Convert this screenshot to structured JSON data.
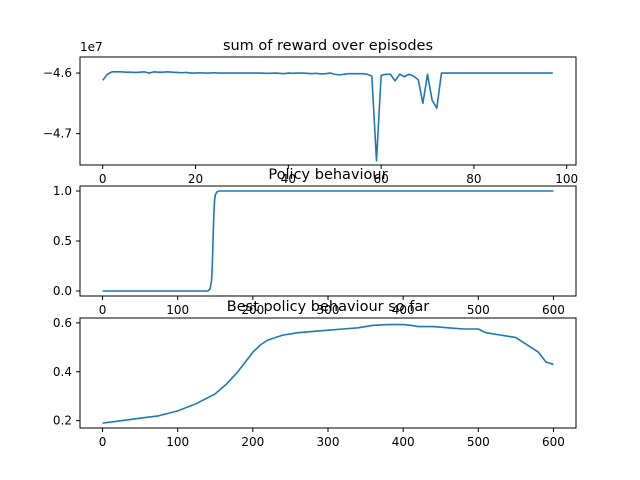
{
  "figure": {
    "background": "#ffffff"
  },
  "chart_data": [
    {
      "type": "line",
      "title": "sum of reward over episodes",
      "xlabel": "",
      "ylabel": "",
      "y_offset_text": "1e7",
      "xlim": [
        -4.9,
        102
      ],
      "ylim": [
        -4.7518,
        -4.5735
      ],
      "x_ticks": [
        0,
        20,
        40,
        60,
        80,
        100
      ],
      "x_tick_labels": [
        "0",
        "20",
        "40",
        "60",
        "80",
        "100"
      ],
      "y_ticks": [
        -4.6,
        -4.7
      ],
      "y_tick_labels": [
        "−4.6",
        "−4.7"
      ],
      "grid": false,
      "series": [
        {
          "color": "#1f77b4",
          "x": [
            0,
            1,
            2,
            3,
            4,
            5,
            6,
            7,
            8,
            9,
            10,
            11,
            12,
            13,
            14,
            15,
            16,
            17,
            18,
            19,
            20,
            21,
            22,
            23,
            24,
            25,
            26,
            27,
            28,
            29,
            30,
            31,
            32,
            33,
            34,
            35,
            36,
            37,
            38,
            39,
            40,
            41,
            42,
            43,
            44,
            45,
            46,
            47,
            48,
            49,
            50,
            51,
            52,
            53,
            54,
            55,
            56,
            57,
            58,
            59,
            60,
            61,
            62,
            63,
            64,
            65,
            66,
            67,
            68,
            69,
            70,
            71,
            72,
            73,
            74,
            75,
            76,
            77,
            78,
            79,
            80,
            81,
            82,
            83,
            84,
            85,
            86,
            87,
            88,
            89,
            90,
            91,
            92,
            93,
            94,
            95,
            96,
            97
          ],
          "y": [
            -46.12,
            -46.02,
            -45.98,
            -45.98,
            -45.98,
            -45.985,
            -45.985,
            -45.99,
            -45.985,
            -45.98,
            -46.0,
            -45.98,
            -45.985,
            -45.985,
            -45.98,
            -45.985,
            -45.99,
            -45.995,
            -45.99,
            -46.0,
            -46.0,
            -45.995,
            -46.0,
            -46.0,
            -45.995,
            -46.0,
            -46.0,
            -46.0,
            -46.0,
            -46.0,
            -46.0,
            -46.0,
            -46.0,
            -46.0,
            -46.0,
            -46.005,
            -46.005,
            -46.0,
            -46.005,
            -46.01,
            -46.0,
            -46.005,
            -46.0,
            -46.0,
            -46.005,
            -46.01,
            -46.005,
            -46.015,
            -46.01,
            -46.0,
            -46.02,
            -46.03,
            -46.02,
            -46.01,
            -46.01,
            -46.01,
            -46.01,
            -46.02,
            -46.05,
            -47.45,
            -46.04,
            -46.02,
            -46.02,
            -46.13,
            -46.02,
            -46.06,
            -46.02,
            -46.05,
            -46.11,
            -46.5,
            -46.02,
            -46.45,
            -46.58,
            -46.0,
            -46.0,
            -46.0,
            -46.0,
            -46.0,
            -46.0,
            -46.0,
            -46.0,
            -46.0,
            -46.0,
            -46.0,
            -46.0,
            -46.0,
            -46.0,
            -46.0,
            -46.0,
            -46.0,
            -46.0,
            -46.0,
            -46.0,
            -46.0,
            -46.0,
            -46.0,
            -46.0,
            -46.0
          ],
          "y_scale_note": "values shown in units of 1e6 for readability; axis shows 1e7 offset"
        }
      ]
    },
    {
      "type": "line",
      "title": "Policy behaviour",
      "xlabel": "",
      "ylabel": "",
      "xlim": [
        -30,
        630
      ],
      "ylim": [
        -0.05,
        1.05
      ],
      "x_ticks": [
        0,
        100,
        200,
        300,
        400,
        500,
        600
      ],
      "x_tick_labels": [
        "0",
        "100",
        "200",
        "300",
        "400",
        "500",
        "600"
      ],
      "y_ticks": [
        0.0,
        0.5,
        1.0
      ],
      "y_tick_labels": [
        "0.0",
        "0.5",
        "1.0"
      ],
      "grid": false,
      "series": [
        {
          "color": "#1f77b4",
          "x": [
            0,
            100,
            140,
            143,
            145,
            146,
            147,
            148,
            149,
            150,
            152,
            155,
            160,
            200,
            300,
            400,
            500,
            600
          ],
          "y": [
            0.0,
            0.0,
            0.0,
            0.02,
            0.1,
            0.25,
            0.5,
            0.75,
            0.9,
            0.96,
            0.99,
            1.0,
            1.0,
            1.0,
            1.0,
            1.0,
            1.0,
            1.0
          ]
        }
      ]
    },
    {
      "type": "line",
      "title": "Best policy behaviour so far",
      "xlabel": "",
      "ylabel": "",
      "xlim": [
        -30,
        630
      ],
      "ylim": [
        0.17,
        0.62
      ],
      "x_ticks": [
        0,
        100,
        200,
        300,
        400,
        500,
        600
      ],
      "x_tick_labels": [
        "0",
        "100",
        "200",
        "300",
        "400",
        "500",
        "600"
      ],
      "y_ticks": [
        0.2,
        0.4,
        0.6
      ],
      "y_tick_labels": [
        "0.2",
        "0.4",
        "0.6"
      ],
      "grid": false,
      "series": [
        {
          "color": "#1f77b4",
          "x": [
            0,
            25,
            50,
            75,
            100,
            125,
            150,
            165,
            180,
            190,
            200,
            210,
            220,
            240,
            260,
            280,
            300,
            320,
            340,
            360,
            380,
            400,
            410,
            420,
            440,
            460,
            480,
            500,
            510,
            530,
            540,
            550,
            560,
            570,
            580,
            590,
            600
          ],
          "y": [
            0.19,
            0.2,
            0.21,
            0.22,
            0.24,
            0.27,
            0.31,
            0.35,
            0.4,
            0.44,
            0.48,
            0.51,
            0.53,
            0.55,
            0.56,
            0.565,
            0.57,
            0.575,
            0.58,
            0.59,
            0.593,
            0.593,
            0.59,
            0.585,
            0.585,
            0.58,
            0.575,
            0.575,
            0.56,
            0.55,
            0.545,
            0.54,
            0.52,
            0.5,
            0.48,
            0.44,
            0.43
          ]
        }
      ]
    }
  ]
}
